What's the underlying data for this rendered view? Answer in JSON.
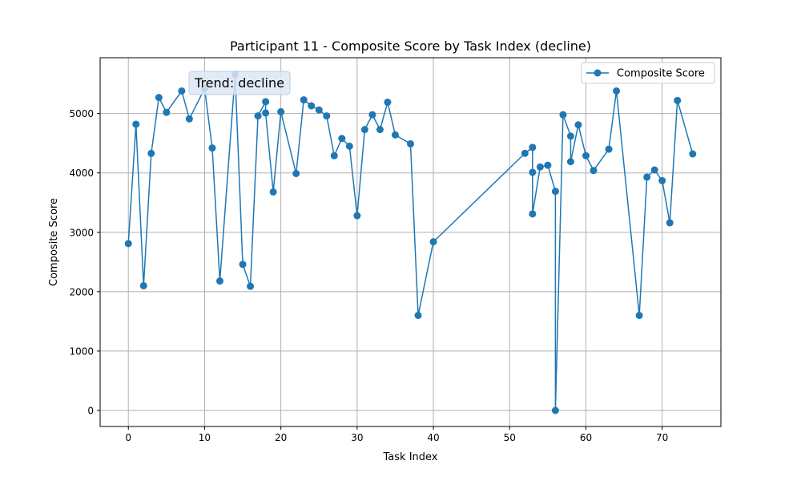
{
  "chart_data": {
    "type": "line",
    "title": "Participant 11 - Composite Score by Task Index (decline)",
    "xlabel": "Task Index",
    "ylabel": "Composite Score",
    "xlim": [
      -3.7,
      77.7
    ],
    "ylim": [
      -270,
      5940
    ],
    "xticks": [
      0,
      10,
      20,
      30,
      40,
      50,
      60,
      70
    ],
    "yticks": [
      0,
      1000,
      2000,
      3000,
      4000,
      5000
    ],
    "grid": true,
    "legend_position": "upper right",
    "annotation": "Trend: decline",
    "series": [
      {
        "name": "Composite Score",
        "color": "#1f77b4",
        "marker": "circle",
        "points": [
          [
            0,
            2810
          ],
          [
            1,
            4820
          ],
          [
            2,
            2100
          ],
          [
            3,
            4330
          ],
          [
            4,
            5270
          ],
          [
            5,
            5020
          ],
          [
            7,
            5380
          ],
          [
            8,
            4910
          ],
          [
            10,
            5420
          ],
          [
            11,
            4420
          ],
          [
            12,
            2180
          ],
          [
            14,
            5660
          ],
          [
            15,
            2460
          ],
          [
            16,
            2090
          ],
          [
            17,
            4960
          ],
          [
            18,
            5200
          ],
          [
            18,
            5010
          ],
          [
            19,
            3680
          ],
          [
            20,
            5030
          ],
          [
            22,
            3990
          ],
          [
            23,
            5230
          ],
          [
            24,
            5130
          ],
          [
            25,
            5060
          ],
          [
            26,
            4960
          ],
          [
            27,
            4290
          ],
          [
            28,
            4580
          ],
          [
            29,
            4450
          ],
          [
            30,
            3280
          ],
          [
            31,
            4730
          ],
          [
            32,
            4980
          ],
          [
            33,
            4730
          ],
          [
            34,
            5190
          ],
          [
            35,
            4640
          ],
          [
            37,
            4490
          ],
          [
            38,
            1600
          ],
          [
            40,
            2840
          ],
          [
            52,
            4330
          ],
          [
            53,
            4430
          ],
          [
            53,
            4010
          ],
          [
            53,
            3310
          ],
          [
            54,
            4100
          ],
          [
            55,
            4130
          ],
          [
            56,
            3690
          ],
          [
            56,
            0
          ],
          [
            57,
            4980
          ],
          [
            58,
            4620
          ],
          [
            58,
            4190
          ],
          [
            59,
            4810
          ],
          [
            60,
            4290
          ],
          [
            61,
            4040
          ],
          [
            63,
            4400
          ],
          [
            64,
            5380
          ],
          [
            67,
            1600
          ],
          [
            68,
            3930
          ],
          [
            69,
            4050
          ],
          [
            70,
            3870
          ],
          [
            71,
            3160
          ],
          [
            72,
            5220
          ],
          [
            74,
            4320
          ]
        ]
      }
    ]
  }
}
